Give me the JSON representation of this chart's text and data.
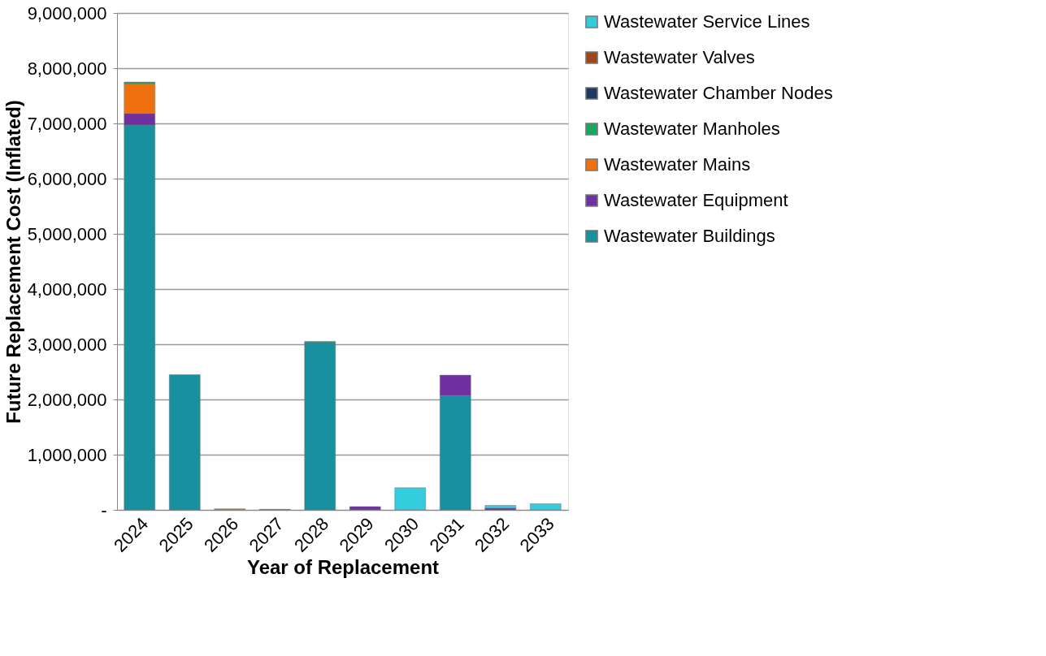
{
  "chart_data": {
    "type": "bar",
    "stacked": true,
    "xlabel": "Year of Replacement",
    "ylabel": "Future Replacement Cost (Inflated)",
    "categories": [
      "2024",
      "2025",
      "2026",
      "2027",
      "2028",
      "2029",
      "2030",
      "2031",
      "2032",
      "2033"
    ],
    "series": [
      {
        "name": "Wastewater Buildings",
        "color": "#17909f",
        "values": [
          6970000,
          2450000,
          null,
          10000,
          3030000,
          null,
          null,
          2070000,
          null,
          null
        ]
      },
      {
        "name": "Wastewater Equipment",
        "color": "#7030a0",
        "values": [
          210000,
          null,
          null,
          null,
          null,
          60000,
          null,
          370000,
          30000,
          null
        ]
      },
      {
        "name": "Wastewater Mains",
        "color": "#f07010",
        "values": [
          540000,
          null,
          20000,
          null,
          null,
          null,
          null,
          null,
          null,
          null
        ]
      },
      {
        "name": "Wastewater Manholes",
        "color": "#1aa860",
        "values": [
          30000,
          null,
          null,
          null,
          20000,
          null,
          null,
          null,
          null,
          null
        ]
      },
      {
        "name": "Wastewater Chamber Nodes",
        "color": "#1f3864",
        "values": [
          null,
          null,
          null,
          null,
          null,
          null,
          null,
          null,
          null,
          null
        ]
      },
      {
        "name": "Wastewater Valves",
        "color": "#a0461a",
        "values": [
          null,
          null,
          null,
          null,
          null,
          null,
          null,
          null,
          null,
          null
        ]
      },
      {
        "name": "Wastewater Service Lines",
        "color": "#33ccdd",
        "values": [
          null,
          null,
          null,
          null,
          null,
          null,
          400000,
          null,
          50000,
          110000
        ]
      }
    ],
    "ylim": [
      0,
      9000000
    ],
    "yticks": [
      {
        "value": 0,
        "label": "-"
      },
      {
        "value": 1000000,
        "label": "1,000,000"
      },
      {
        "value": 2000000,
        "label": "2,000,000"
      },
      {
        "value": 3000000,
        "label": "3,000,000"
      },
      {
        "value": 4000000,
        "label": "4,000,000"
      },
      {
        "value": 5000000,
        "label": "5,000,000"
      },
      {
        "value": 6000000,
        "label": "6,000,000"
      },
      {
        "value": 7000000,
        "label": "7,000,000"
      },
      {
        "value": 8000000,
        "label": "8,000,000"
      },
      {
        "value": 9000000,
        "label": "9,000,000"
      }
    ],
    "grid": "y",
    "legend": "right"
  }
}
